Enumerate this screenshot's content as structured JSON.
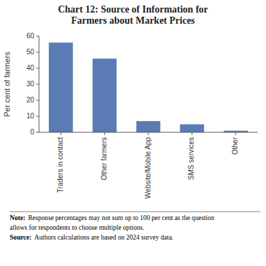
{
  "chart_data": {
    "type": "bar",
    "title": "Chart 12: Source of Information for\nFarmers about Market Prices",
    "categories": [
      "Traders in contact",
      "Other farmers",
      "Website/Mobile App",
      "SMS services",
      "Other"
    ],
    "values": [
      56,
      46,
      7,
      5,
      1
    ],
    "color": "#5B7BB5",
    "ylabel": "Per cent of farmers",
    "ylim": [
      0,
      60
    ],
    "yticks": [
      0,
      10,
      20,
      30,
      40,
      50,
      60
    ],
    "grid": false,
    "annotations": [
      {
        "label": "Note:",
        "text": "Response percentages may not sum up to 100 per cent as the question"
      },
      {
        "text": "allows for respondents to choose multiple options."
      },
      {
        "label": "Source:",
        "text": "Authors calculations are based on 2024 survey data."
      }
    ]
  }
}
